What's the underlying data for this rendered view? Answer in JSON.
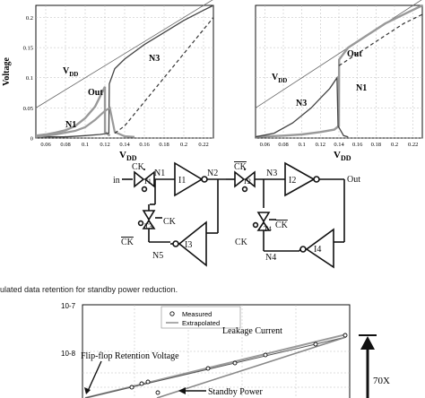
{
  "caption_fragment": "ulated data retention for standby power reduction.",
  "chart_data": [
    {
      "type": "line",
      "ylabel": "Voltage",
      "xlabel": "V_DD",
      "xlim": [
        0.05,
        0.23
      ],
      "ylim": [
        0,
        0.22
      ],
      "xticks": [
        "0.06",
        "0.08",
        "0.1",
        "0.12",
        "0.14",
        "0.16",
        "0.18",
        "0.2",
        "0.22"
      ],
      "yticks": [
        "0",
        "0.05",
        "0.1",
        "0.15",
        "0.2"
      ],
      "grid": true,
      "annotations": [
        {
          "text": "V",
          "sub": "DD",
          "ref": "vdd"
        },
        {
          "text": "Out",
          "ref": "out"
        },
        {
          "text": "N3",
          "ref": "n3"
        },
        {
          "text": "N1",
          "ref": "n1"
        }
      ],
      "series": [
        {
          "ref": "vdd",
          "x": [
            0.05,
            0.23
          ],
          "y": [
            0.05,
            0.23
          ]
        },
        {
          "ref": "out",
          "x": [
            0.05,
            0.06,
            0.07,
            0.08,
            0.09,
            0.1,
            0.11,
            0.12,
            0.1201,
            0.125
          ],
          "y": [
            0.004,
            0.006,
            0.009,
            0.013,
            0.02,
            0.033,
            0.052,
            0.085,
            0.01,
            0.004
          ]
        },
        {
          "ref": "n3",
          "x": [
            0.05,
            0.08,
            0.1,
            0.115,
            0.124,
            0.1245,
            0.13,
            0.14,
            0.16,
            0.18,
            0.2,
            0.22,
            0.23
          ],
          "y": [
            0.002,
            0.002,
            0.004,
            0.006,
            0.008,
            0.09,
            0.115,
            0.131,
            0.155,
            0.175,
            0.195,
            0.212,
            0.22
          ]
        },
        {
          "ref": "n1",
          "x": [
            0.05,
            0.07,
            0.09,
            0.1,
            0.11,
            0.12,
            0.125,
            0.13,
            0.14,
            0.15
          ],
          "y": [
            0.002,
            0.006,
            0.012,
            0.018,
            0.03,
            0.045,
            0.05,
            0.01,
            0.003,
            0.002
          ]
        },
        {
          "ref": "dashed",
          "dashed": true,
          "x": [
            0.13,
            0.14,
            0.16,
            0.18,
            0.2,
            0.22,
            0.23
          ],
          "y": [
            0.008,
            0.02,
            0.06,
            0.1,
            0.14,
            0.18,
            0.2
          ]
        }
      ]
    },
    {
      "type": "line",
      "xlabel": "V_DD",
      "xlim": [
        0.05,
        0.23
      ],
      "ylim": [
        0,
        0.22
      ],
      "xticks": [
        "0.06",
        "0.08",
        "0.1",
        "0.12",
        "0.14",
        "0.16",
        "0.18",
        "0.2",
        "0.22"
      ],
      "grid": true,
      "annotations": [
        {
          "text": "V",
          "sub": "DD",
          "ref": "vdd"
        },
        {
          "text": "Out",
          "ref": "out"
        },
        {
          "text": "N3",
          "ref": "n3"
        },
        {
          "text": "N1",
          "ref": "n1"
        }
      ],
      "series": [
        {
          "ref": "vdd",
          "x": [
            0.05,
            0.23
          ],
          "y": [
            0.05,
            0.23
          ]
        },
        {
          "ref": "out",
          "x": [
            0.05,
            0.08,
            0.1,
            0.12,
            0.135,
            0.14,
            0.1402,
            0.15,
            0.17,
            0.19,
            0.21,
            0.23
          ],
          "y": [
            0.002,
            0.004,
            0.006,
            0.01,
            0.014,
            0.02,
            0.13,
            0.15,
            0.17,
            0.19,
            0.205,
            0.22
          ]
        },
        {
          "ref": "n3",
          "x": [
            0.05,
            0.07,
            0.09,
            0.11,
            0.12,
            0.13,
            0.138,
            0.139,
            0.145,
            0.15
          ],
          "y": [
            0.002,
            0.008,
            0.025,
            0.05,
            0.066,
            0.082,
            0.1,
            0.02,
            0.004,
            0.002
          ]
        },
        {
          "ref": "dashed",
          "dashed": true,
          "x": [
            0.14,
            0.15,
            0.17,
            0.19,
            0.21,
            0.23
          ],
          "y": [
            0.12,
            0.13,
            0.15,
            0.17,
            0.19,
            0.205
          ]
        }
      ]
    },
    {
      "type": "scatter",
      "title": "",
      "yticks": [
        "10-7",
        "10-8"
      ],
      "legend": {
        "placement": "top-center",
        "entries": [
          "Measured",
          "Extrapolated"
        ]
      },
      "annotations": [
        "Leakage Current",
        "Flip-flop Retention Voltage",
        "Standby Power",
        "70X"
      ]
    }
  ],
  "schematic": {
    "labels": [
      "in",
      "CK",
      "T1",
      "N1",
      "I1",
      "N2",
      "T3",
      "CK",
      "CK",
      "N5",
      "I3",
      "CK",
      "T2",
      "N3",
      "I2",
      "Out",
      "T4",
      "CK",
      "CK",
      "N4",
      "I4"
    ]
  }
}
